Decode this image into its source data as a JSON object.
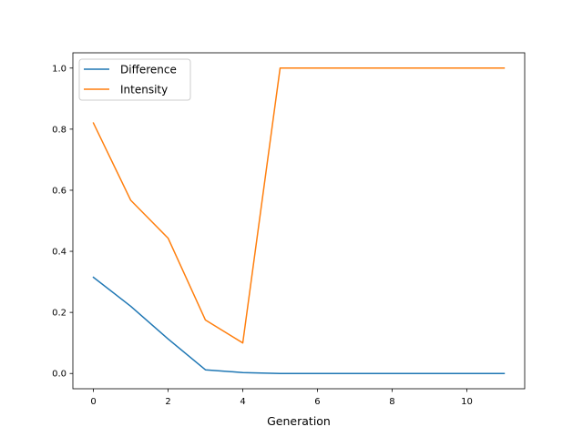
{
  "chart_data": {
    "type": "line",
    "title": "",
    "xlabel": "Generation",
    "ylabel": "",
    "xlim": [
      -0.55,
      11.55
    ],
    "ylim": [
      -0.05,
      1.05
    ],
    "xticks": [
      0,
      2,
      4,
      6,
      8,
      10
    ],
    "xtick_labels": [
      "0",
      "2",
      "4",
      "6",
      "8",
      "10"
    ],
    "yticks": [
      0.0,
      0.2,
      0.4,
      0.6,
      0.8,
      1.0
    ],
    "ytick_labels": [
      "0.0",
      "0.2",
      "0.4",
      "0.6",
      "0.8",
      "1.0"
    ],
    "grid": false,
    "legend_position": "top-left",
    "x": [
      0,
      1,
      2,
      3,
      4,
      5,
      6,
      7,
      8,
      9,
      10,
      11
    ],
    "series": [
      {
        "name": "Difference",
        "color": "#1f77b4",
        "values": [
          0.315,
          0.22,
          0.113,
          0.012,
          0.003,
          0.0,
          0.0,
          0.0,
          0.0,
          0.0,
          0.0,
          0.0
        ]
      },
      {
        "name": "Intensity",
        "color": "#ff7f0e",
        "values": [
          0.82,
          0.567,
          0.443,
          0.175,
          0.1,
          1.0,
          1.0,
          1.0,
          1.0,
          1.0,
          1.0,
          1.0
        ]
      }
    ]
  }
}
